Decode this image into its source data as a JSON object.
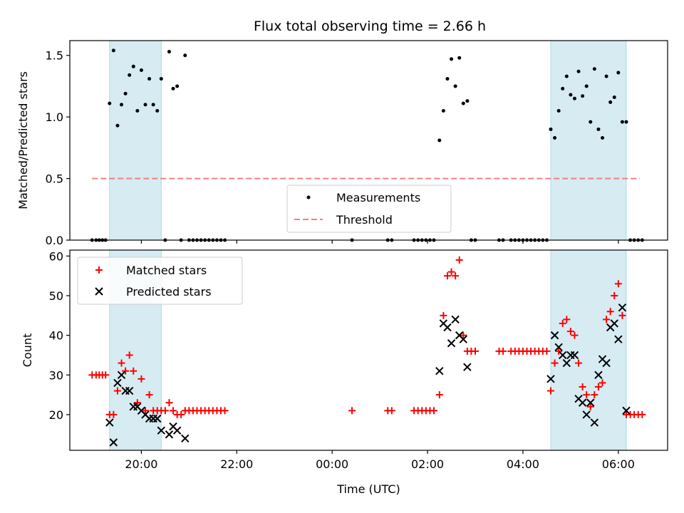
{
  "title": "Flux total observing time = 2.66 h",
  "chart_data": [
    {
      "type": "scatter",
      "ylabel": "Matched/Predicted stars",
      "ylim": [
        0,
        1.62
      ],
      "yticks": [
        0.0,
        0.5,
        1.0,
        1.5
      ],
      "ytick_labels": [
        "0.0",
        "0.5",
        "1.0",
        "1.5"
      ],
      "legend": {
        "placement": "bottom-center",
        "entries": [
          "Measurements",
          "Threshold"
        ]
      },
      "threshold": {
        "y": 0.5,
        "x_start": "18:58",
        "x_end": "06:27",
        "color": "#f08080"
      },
      "measurements": [
        [
          "18:58",
          0
        ],
        [
          "19:03",
          0
        ],
        [
          "19:07",
          0
        ],
        [
          "19:11",
          0
        ],
        [
          "19:15",
          0
        ],
        [
          "19:20",
          1.11
        ],
        [
          "19:25",
          1.54
        ],
        [
          "19:30",
          0.93
        ],
        [
          "19:35",
          1.1
        ],
        [
          "19:40",
          1.19
        ],
        [
          "19:45",
          1.34
        ],
        [
          "19:50",
          1.41
        ],
        [
          "19:55",
          1.05
        ],
        [
          "20:00",
          1.38
        ],
        [
          "20:05",
          1.1
        ],
        [
          "20:10",
          1.31
        ],
        [
          "20:15",
          1.1
        ],
        [
          "20:20",
          1.05
        ],
        [
          "20:25",
          1.31
        ],
        [
          "20:30",
          0
        ],
        [
          "20:35",
          1.53
        ],
        [
          "20:40",
          1.23
        ],
        [
          "20:45",
          1.25
        ],
        [
          "20:50",
          0
        ],
        [
          "20:55",
          1.5
        ],
        [
          "21:00",
          0
        ],
        [
          "21:05",
          0
        ],
        [
          "21:10",
          0
        ],
        [
          "21:15",
          0
        ],
        [
          "21:20",
          0
        ],
        [
          "21:25",
          0
        ],
        [
          "21:30",
          0
        ],
        [
          "21:35",
          0
        ],
        [
          "21:40",
          0
        ],
        [
          "21:45",
          0
        ],
        [
          "00:25",
          0
        ],
        [
          "01:10",
          0
        ],
        [
          "01:15",
          0
        ],
        [
          "01:43",
          0
        ],
        [
          "01:48",
          0
        ],
        [
          "01:53",
          0
        ],
        [
          "01:58",
          0
        ],
        [
          "02:03",
          0
        ],
        [
          "02:08",
          0
        ],
        [
          "02:15",
          0.81
        ],
        [
          "02:20",
          1.05
        ],
        [
          "02:25",
          1.31
        ],
        [
          "02:30",
          1.47
        ],
        [
          "02:35",
          1.25
        ],
        [
          "02:40",
          1.48
        ],
        [
          "02:45",
          1.11
        ],
        [
          "02:50",
          1.13
        ],
        [
          "02:55",
          0
        ],
        [
          "03:00",
          0
        ],
        [
          "03:30",
          0
        ],
        [
          "03:35",
          0
        ],
        [
          "03:45",
          0
        ],
        [
          "03:50",
          0
        ],
        [
          "03:55",
          0
        ],
        [
          "04:00",
          0
        ],
        [
          "04:05",
          0
        ],
        [
          "04:10",
          0
        ],
        [
          "04:15",
          0
        ],
        [
          "04:20",
          0
        ],
        [
          "04:25",
          0
        ],
        [
          "04:30",
          0
        ],
        [
          "04:35",
          0.9
        ],
        [
          "04:40",
          0.83
        ],
        [
          "04:45",
          1.05
        ],
        [
          "04:50",
          1.23
        ],
        [
          "04:55",
          1.33
        ],
        [
          "05:00",
          1.18
        ],
        [
          "05:05",
          1.15
        ],
        [
          "05:10",
          1.37
        ],
        [
          "05:15",
          1.17
        ],
        [
          "05:20",
          1.25
        ],
        [
          "05:25",
          0.96
        ],
        [
          "05:30",
          1.39
        ],
        [
          "05:35",
          0.9
        ],
        [
          "05:40",
          0.83
        ],
        [
          "05:45",
          1.33
        ],
        [
          "05:50",
          1.12
        ],
        [
          "05:55",
          1.16
        ],
        [
          "06:00",
          1.36
        ],
        [
          "06:05",
          0.96
        ],
        [
          "06:10",
          0.96
        ],
        [
          "06:15",
          0
        ],
        [
          "06:20",
          0
        ],
        [
          "06:25",
          0
        ],
        [
          "06:30",
          0
        ]
      ]
    },
    {
      "type": "scatter",
      "xlabel": "Time (UTC)",
      "ylabel": "Count",
      "ylim": [
        11,
        61.5
      ],
      "yticks": [
        20,
        30,
        40,
        50,
        60
      ],
      "ytick_labels": [
        "20",
        "30",
        "40",
        "50",
        "60"
      ],
      "xticks": [
        "20:00",
        "22:00",
        "00:00",
        "02:00",
        "04:00",
        "06:00"
      ],
      "legend": {
        "placement": "top-left",
        "entries": [
          "Matched stars",
          "Predicted stars"
        ]
      },
      "series": [
        {
          "name": "Matched stars",
          "marker": "plus",
          "color": "#ff0000",
          "points": [
            [
              "18:58",
              30
            ],
            [
              "19:03",
              30
            ],
            [
              "19:07",
              30
            ],
            [
              "19:11",
              30
            ],
            [
              "19:15",
              30
            ],
            [
              "19:20",
              20
            ],
            [
              "19:25",
              20
            ],
            [
              "19:30",
              26
            ],
            [
              "19:35",
              33
            ],
            [
              "19:40",
              31
            ],
            [
              "19:45",
              35
            ],
            [
              "19:50",
              31
            ],
            [
              "19:55",
              23
            ],
            [
              "20:00",
              29
            ],
            [
              "20:05",
              21
            ],
            [
              "20:10",
              25
            ],
            [
              "20:15",
              21
            ],
            [
              "20:20",
              21
            ],
            [
              "20:25",
              21
            ],
            [
              "20:30",
              21
            ],
            [
              "20:35",
              23
            ],
            [
              "20:40",
              21
            ],
            [
              "20:45",
              20
            ],
            [
              "20:50",
              20
            ],
            [
              "20:55",
              21
            ],
            [
              "21:00",
              21
            ],
            [
              "21:05",
              21
            ],
            [
              "21:10",
              21
            ],
            [
              "21:15",
              21
            ],
            [
              "21:20",
              21
            ],
            [
              "21:25",
              21
            ],
            [
              "21:30",
              21
            ],
            [
              "21:35",
              21
            ],
            [
              "21:40",
              21
            ],
            [
              "21:45",
              21
            ],
            [
              "00:25",
              21
            ],
            [
              "01:10",
              21
            ],
            [
              "01:15",
              21
            ],
            [
              "01:43",
              21
            ],
            [
              "01:48",
              21
            ],
            [
              "01:53",
              21
            ],
            [
              "01:58",
              21
            ],
            [
              "02:03",
              21
            ],
            [
              "02:08",
              21
            ],
            [
              "02:15",
              25
            ],
            [
              "02:20",
              45
            ],
            [
              "02:25",
              55
            ],
            [
              "02:30",
              56
            ],
            [
              "02:35",
              55
            ],
            [
              "02:40",
              59
            ],
            [
              "02:45",
              40
            ],
            [
              "02:50",
              36
            ],
            [
              "02:55",
              36
            ],
            [
              "03:00",
              36
            ],
            [
              "03:30",
              36
            ],
            [
              "03:35",
              36
            ],
            [
              "03:45",
              36
            ],
            [
              "03:50",
              36
            ],
            [
              "03:55",
              36
            ],
            [
              "04:00",
              36
            ],
            [
              "04:05",
              36
            ],
            [
              "04:10",
              36
            ],
            [
              "04:15",
              36
            ],
            [
              "04:20",
              36
            ],
            [
              "04:25",
              36
            ],
            [
              "04:30",
              36
            ],
            [
              "04:35",
              26
            ],
            [
              "04:40",
              33
            ],
            [
              "04:45",
              36
            ],
            [
              "04:50",
              43
            ],
            [
              "04:55",
              44
            ],
            [
              "05:00",
              41
            ],
            [
              "05:05",
              40
            ],
            [
              "05:10",
              33
            ],
            [
              "05:15",
              27
            ],
            [
              "05:20",
              25
            ],
            [
              "05:25",
              22
            ],
            [
              "05:30",
              25
            ],
            [
              "05:35",
              27
            ],
            [
              "05:40",
              28
            ],
            [
              "05:45",
              44
            ],
            [
              "05:50",
              46
            ],
            [
              "05:55",
              50
            ],
            [
              "06:00",
              53
            ],
            [
              "06:05",
              45
            ],
            [
              "06:10",
              20
            ],
            [
              "06:15",
              20
            ],
            [
              "06:20",
              20
            ],
            [
              "06:25",
              20
            ],
            [
              "06:30",
              20
            ]
          ]
        },
        {
          "name": "Predicted stars",
          "marker": "x",
          "color": "#000000",
          "points": [
            [
              "19:20",
              18
            ],
            [
              "19:25",
              13
            ],
            [
              "19:30",
              28
            ],
            [
              "19:35",
              30
            ],
            [
              "19:40",
              26
            ],
            [
              "19:45",
              26
            ],
            [
              "19:50",
              22
            ],
            [
              "19:55",
              22
            ],
            [
              "20:00",
              21
            ],
            [
              "20:05",
              20
            ],
            [
              "20:10",
              19
            ],
            [
              "20:15",
              19
            ],
            [
              "20:20",
              19
            ],
            [
              "20:25",
              16
            ],
            [
              "20:35",
              15
            ],
            [
              "20:40",
              17
            ],
            [
              "20:45",
              16
            ],
            [
              "20:55",
              14
            ],
            [
              "02:15",
              31
            ],
            [
              "02:20",
              43
            ],
            [
              "02:25",
              42
            ],
            [
              "02:30",
              38
            ],
            [
              "02:35",
              44
            ],
            [
              "02:40",
              40
            ],
            [
              "02:45",
              39
            ],
            [
              "02:50",
              32
            ],
            [
              "04:35",
              29
            ],
            [
              "04:40",
              40
            ],
            [
              "04:45",
              37
            ],
            [
              "04:50",
              35
            ],
            [
              "04:55",
              33
            ],
            [
              "05:00",
              35
            ],
            [
              "05:05",
              35
            ],
            [
              "05:10",
              24
            ],
            [
              "05:15",
              23
            ],
            [
              "05:20",
              20
            ],
            [
              "05:25",
              23
            ],
            [
              "05:30",
              18
            ],
            [
              "05:35",
              30
            ],
            [
              "05:40",
              34
            ],
            [
              "05:45",
              33
            ],
            [
              "05:50",
              42
            ],
            [
              "05:55",
              43
            ],
            [
              "06:00",
              39
            ],
            [
              "06:05",
              47
            ],
            [
              "06:10",
              21
            ]
          ]
        }
      ]
    }
  ],
  "shaded_intervals": [
    {
      "start": "19:20",
      "end": "20:25",
      "color": "#add8e6"
    },
    {
      "start": "04:35",
      "end": "06:10",
      "color": "#add8e6"
    }
  ]
}
